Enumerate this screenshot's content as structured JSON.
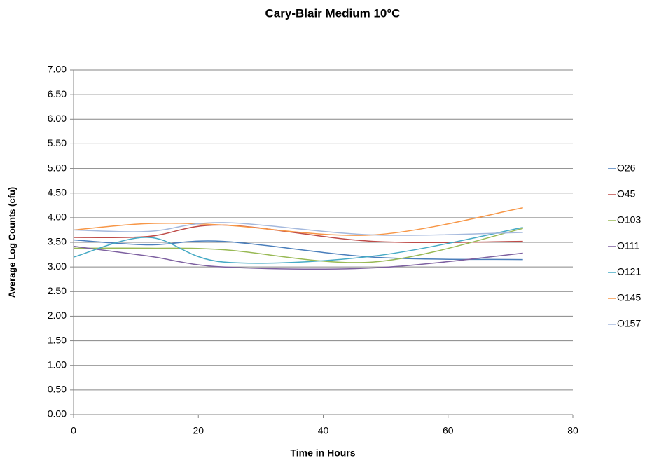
{
  "chart_data": {
    "type": "line",
    "title": "Cary-Blair  Medium 10°C",
    "xlabel": "Time in Hours",
    "ylabel": "Average Log Counts  (cfu)",
    "x": [
      0,
      12,
      24,
      48,
      72
    ],
    "xlim": [
      0,
      80
    ],
    "xticks": [
      0,
      20,
      40,
      60,
      80
    ],
    "ylim": [
      0,
      7
    ],
    "yticks": [
      {
        "value": 0,
        "label": "0.00"
      },
      {
        "value": 0.5,
        "label": "0.50"
      },
      {
        "value": 1,
        "label": "1.00"
      },
      {
        "value": 1.5,
        "label": "1.50"
      },
      {
        "value": 2,
        "label": "2.00"
      },
      {
        "value": 2.5,
        "label": "2.50"
      },
      {
        "value": 3,
        "label": "3.00"
      },
      {
        "value": 3.5,
        "label": "3.50"
      },
      {
        "value": 4,
        "label": "4.00"
      },
      {
        "value": 4.5,
        "label": "4.50"
      },
      {
        "value": 5,
        "label": "5.00"
      },
      {
        "value": 5.5,
        "label": "5.50"
      },
      {
        "value": 6,
        "label": "6.00"
      },
      {
        "value": 6.5,
        "label": "6.50"
      },
      {
        "value": 7,
        "label": "7.00"
      }
    ],
    "grid": true,
    "smooth": true,
    "legend": "right",
    "series": [
      {
        "name": "O26",
        "color": "#4a7ebb",
        "values": [
          3.55,
          3.45,
          3.52,
          3.2,
          3.15
        ]
      },
      {
        "name": "O45",
        "color": "#be4b48",
        "values": [
          3.6,
          3.62,
          3.85,
          3.52,
          3.52
        ]
      },
      {
        "name": "O103",
        "color": "#98b954",
        "values": [
          3.38,
          3.38,
          3.35,
          3.1,
          3.78
        ]
      },
      {
        "name": "O111",
        "color": "#7d60a0",
        "values": [
          3.42,
          3.22,
          3.0,
          2.98,
          3.28
        ]
      },
      {
        "name": "O121",
        "color": "#46aac5",
        "values": [
          3.2,
          3.6,
          3.1,
          3.22,
          3.8
        ]
      },
      {
        "name": "O145",
        "color": "#f79646",
        "values": [
          3.75,
          3.88,
          3.85,
          3.65,
          4.2
        ]
      },
      {
        "name": "O157",
        "color": "#a5b9dd",
        "values": [
          3.75,
          3.72,
          3.9,
          3.65,
          3.7
        ]
      }
    ]
  }
}
